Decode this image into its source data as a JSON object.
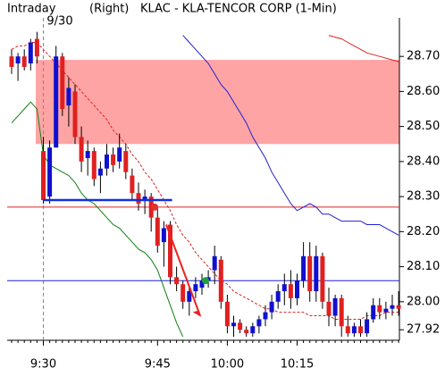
{
  "chart_data": {
    "type": "candlestick",
    "title": "KLAC - KLA-TENCOR CORP (1-Min)",
    "mode": "Intraday",
    "axis_side": "(Right)",
    "date": "9/30",
    "categories": [
      null,
      null,
      null,
      null,
      null,
      "9:30",
      null,
      null,
      null,
      null,
      null,
      null,
      null,
      null,
      null,
      null,
      null,
      null,
      null,
      null,
      null,
      null,
      null,
      "9:45",
      null,
      null,
      null,
      null,
      null,
      null,
      null,
      null,
      null,
      null,
      "10:00",
      null,
      null,
      null,
      null,
      null,
      null,
      null,
      null,
      null,
      null,
      "10:15",
      null,
      null,
      null,
      null,
      null,
      null,
      null,
      null,
      null,
      null,
      null,
      null,
      null,
      null,
      null,
      null
    ],
    "open": [
      28.7,
      28.68,
      28.7,
      28.68,
      28.75,
      28.43,
      28.3,
      28.44,
      28.7,
      28.56,
      28.6,
      28.47,
      28.41,
      28.43,
      28.36,
      28.38,
      28.42,
      28.4,
      28.43,
      28.36,
      28.31,
      28.29,
      28.3,
      28.24,
      28.17,
      28.22,
      28.07,
      28.05,
      28.0,
      28.03,
      28.04,
      28.06,
      28.09,
      28.12,
      28.0,
      27.93,
      27.94,
      27.92,
      27.91,
      27.93,
      27.95,
      27.97,
      28.0,
      28.03,
      28.05,
      28.01,
      28.06,
      28.13,
      28.03,
      28.13,
      28.0,
      27.96,
      28.01,
      27.93,
      27.91,
      27.93,
      27.91,
      27.95,
      27.99,
      27.97,
      27.98,
      27.99
    ],
    "high": [
      28.72,
      28.71,
      28.72,
      28.75,
      28.77,
      28.47,
      28.46,
      28.73,
      28.71,
      28.64,
      28.62,
      28.5,
      28.46,
      28.44,
      28.4,
      28.45,
      28.44,
      28.48,
      28.45,
      28.38,
      28.34,
      28.32,
      28.31,
      28.27,
      28.23,
      28.23,
      28.1,
      28.06,
      28.04,
      28.07,
      28.08,
      28.09,
      28.16,
      28.13,
      28.02,
      27.96,
      27.95,
      27.93,
      27.94,
      27.96,
      27.99,
      28.02,
      28.05,
      28.08,
      28.09,
      28.08,
      28.17,
      28.17,
      28.16,
      28.14,
      28.04,
      28.02,
      28.02,
      27.96,
      27.94,
      27.95,
      27.97,
      28.01,
      28.01,
      28.0,
      28.02,
      28.03
    ],
    "low": [
      28.65,
      28.63,
      28.66,
      28.66,
      28.68,
      28.28,
      28.28,
      28.44,
      28.53,
      28.5,
      28.45,
      28.37,
      28.36,
      28.33,
      28.31,
      28.36,
      28.37,
      28.38,
      28.35,
      28.29,
      28.26,
      28.25,
      28.2,
      28.14,
      28.1,
      28.05,
      28.03,
      27.98,
      27.96,
      28.01,
      28.02,
      28.04,
      28.05,
      27.98,
      27.91,
      27.9,
      27.91,
      27.9,
      27.9,
      27.91,
      27.93,
      27.95,
      27.98,
      27.99,
      27.98,
      27.99,
      28.04,
      28.0,
      28.0,
      27.98,
      27.93,
      27.93,
      27.9,
      27.9,
      27.9,
      27.9,
      27.9,
      27.94,
      27.95,
      27.95,
      27.96,
      27.96
    ],
    "close": [
      28.67,
      28.7,
      28.67,
      28.74,
      28.7,
      28.29,
      28.44,
      28.7,
      28.55,
      28.61,
      28.47,
      28.4,
      28.43,
      28.35,
      28.38,
      28.42,
      28.39,
      28.44,
      28.37,
      28.31,
      28.28,
      28.3,
      28.24,
      28.16,
      28.21,
      28.07,
      28.05,
      28.0,
      28.03,
      28.05,
      28.06,
      28.07,
      28.13,
      28.0,
      27.93,
      27.94,
      27.92,
      27.91,
      27.93,
      27.95,
      27.97,
      28.0,
      28.03,
      28.05,
      28.01,
      28.06,
      28.13,
      28.03,
      28.13,
      28.0,
      27.96,
      28.01,
      27.93,
      27.91,
      27.93,
      27.91,
      27.95,
      27.99,
      27.97,
      27.98,
      27.99,
      27.98
    ],
    "up_color": "#1010d0",
    "down_color": "#e02020",
    "lines": [
      {
        "color": "#e02020",
        "dashed": true,
        "values": [
          28.72,
          28.73,
          28.73,
          28.74,
          28.74,
          28.72,
          28.7,
          28.68,
          28.66,
          28.64,
          28.62,
          28.6,
          28.58,
          28.56,
          28.54,
          28.52,
          28.49,
          28.47,
          28.45,
          28.42,
          28.4,
          28.37,
          28.35,
          28.32,
          28.29,
          28.26,
          28.22,
          28.19,
          28.17,
          28.14,
          28.12,
          28.1,
          28.08,
          28.06,
          28.05,
          28.03,
          28.02,
          28.01,
          28.0,
          27.99,
          27.98,
          27.98,
          27.97,
          27.97,
          27.97,
          27.97,
          27.97,
          27.96,
          27.96,
          27.96,
          27.96,
          27.95,
          27.95,
          27.95,
          27.95,
          27.95,
          27.96,
          27.96,
          27.96,
          27.97,
          27.97,
          27.97
        ]
      },
      {
        "color": "#108010",
        "dashed": false,
        "values": [
          28.51,
          28.53,
          28.55,
          28.57,
          28.55,
          28.42,
          28.39,
          28.38,
          28.37,
          28.36,
          28.34,
          28.31,
          28.29,
          28.28,
          28.26,
          28.24,
          28.22,
          28.21,
          28.19,
          28.17,
          28.15,
          28.14,
          28.12,
          28.09,
          28.04,
          27.99,
          27.94,
          27.9,
          null,
          null,
          null,
          null,
          null,
          null,
          null,
          null,
          null,
          null,
          null,
          null,
          null,
          null,
          null,
          null,
          null,
          null,
          null,
          null,
          null,
          null,
          null,
          null,
          null,
          null,
          null,
          null,
          null,
          null,
          null,
          null,
          null,
          null
        ]
      },
      {
        "color": "#2020d0",
        "dashed": false,
        "values": [
          null,
          null,
          null,
          null,
          null,
          null,
          null,
          null,
          null,
          null,
          null,
          null,
          null,
          null,
          null,
          null,
          null,
          null,
          null,
          null,
          null,
          null,
          null,
          null,
          null,
          null,
          null,
          28.76,
          28.74,
          28.72,
          28.7,
          28.68,
          28.65,
          28.62,
          28.6,
          28.57,
          28.54,
          28.51,
          28.47,
          28.44,
          28.41,
          28.37,
          28.34,
          28.31,
          28.28,
          28.26,
          28.27,
          28.28,
          28.27,
          28.25,
          28.25,
          28.24,
          28.23,
          28.23,
          28.23,
          28.23,
          28.22,
          28.22,
          28.22,
          28.21,
          28.2,
          28.19
        ]
      },
      {
        "color": "#e02020",
        "dashed": false,
        "values": [
          null,
          null,
          null,
          null,
          null,
          null,
          null,
          null,
          null,
          null,
          null,
          null,
          null,
          null,
          null,
          null,
          null,
          null,
          null,
          null,
          null,
          null,
          null,
          null,
          null,
          null,
          null,
          null,
          null,
          null,
          null,
          null,
          null,
          null,
          null,
          null,
          null,
          null,
          null,
          null,
          null,
          null,
          null,
          null,
          null,
          null,
          null,
          null,
          null,
          null,
          28.76,
          28.755,
          28.75,
          28.74,
          28.73,
          28.72,
          28.71,
          28.705,
          28.7,
          28.695,
          28.69,
          28.685
        ]
      }
    ],
    "band": {
      "low": 28.45,
      "high": 28.69,
      "color": "#ff9a9a"
    },
    "levels": [
      {
        "value": 28.27,
        "color": "#e02020"
      },
      {
        "value": 28.06,
        "color": "#2020d0"
      }
    ],
    "support": {
      "value": 28.29,
      "color": "#1030e0"
    },
    "arrow": {
      "from": 28.22,
      "to": 27.96,
      "color": "#f02020"
    },
    "markers": [
      {
        "value": 28.27,
        "color": "#e03030"
      },
      {
        "value": 28.06,
        "color": "#20a040"
      }
    ],
    "ylim": [
      27.89,
      28.81
    ],
    "yticks": [
      {
        "value": 28.7,
        "label": "28.70"
      },
      {
        "value": 28.6,
        "label": "28.60"
      },
      {
        "value": 28.5,
        "label": "28.50"
      },
      {
        "value": 28.4,
        "label": "28.40"
      },
      {
        "value": 28.3,
        "label": "28.30"
      },
      {
        "value": 28.2,
        "label": "28.20"
      },
      {
        "value": 28.1,
        "label": "28.10"
      },
      {
        "value": 28.0,
        "label": "28.00"
      },
      27.92
    ]
  }
}
